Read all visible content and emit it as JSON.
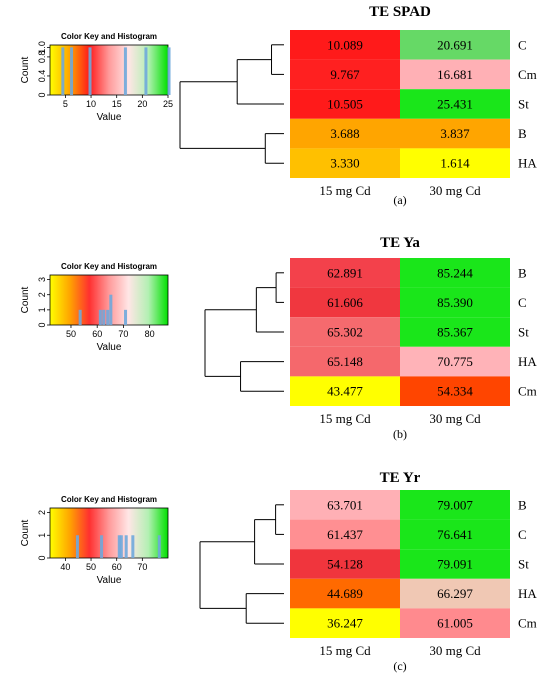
{
  "chart_data": [
    {
      "type": "heatmap",
      "title": "TE SPAD",
      "panel": "(a)",
      "columns": [
        "15 mg Cd",
        "30 mg Cd"
      ],
      "rows": [
        "C",
        "Cm",
        "St",
        "B",
        "HA"
      ],
      "values": [
        [
          "10.089",
          "20.691"
        ],
        [
          "9.767",
          "16.681"
        ],
        [
          "10.505",
          "25.431"
        ],
        [
          "3.688",
          "3.837"
        ],
        [
          "3.330",
          "1.614"
        ]
      ],
      "colors": [
        [
          "#ff1a1a",
          "#66d966"
        ],
        [
          "#ff2020",
          "#ffb0b5"
        ],
        [
          "#ff1a1a",
          "#1ae61a"
        ],
        [
          "#ffa500",
          "#ffa500"
        ],
        [
          "#ffc000",
          "#ffff00"
        ]
      ],
      "dendrogram": {
        "heights": [
          0.12,
          0.45,
          0.18,
          1.0
        ],
        "order": [
          "C",
          "Cm",
          "St",
          "B",
          "HA"
        ]
      },
      "color_key": {
        "title": "Color Key and Histogram",
        "xlabel": "Value",
        "ylabel": "Count",
        "xlim": [
          2,
          25
        ],
        "xticks": [
          "5",
          "10",
          "15",
          "20",
          "25"
        ],
        "yticks": [
          "0",
          "0.4",
          "0.8",
          "1.0"
        ],
        "gradient": [
          "#ffff00",
          "#ffa500",
          "#ff1a1a",
          "#ff9a9a",
          "#ffe6e6",
          "#b3f0b3",
          "#00e000"
        ]
      }
    },
    {
      "type": "heatmap",
      "title": "TE Ya",
      "panel": "(b)",
      "columns": [
        "15 mg Cd",
        "30 mg Cd"
      ],
      "rows": [
        "B",
        "C",
        "St",
        "HA",
        "Cm"
      ],
      "values": [
        [
          "62.891",
          "85.244"
        ],
        [
          "61.606",
          "85.390"
        ],
        [
          "65.302",
          "85.367"
        ],
        [
          "65.148",
          "70.775"
        ],
        [
          "43.477",
          "54.334"
        ]
      ],
      "colors": [
        [
          "#f3414b",
          "#1ae61a"
        ],
        [
          "#f0373f",
          "#1ae61a"
        ],
        [
          "#f56a6e",
          "#1ae61a"
        ],
        [
          "#f5686c",
          "#ffb3b8"
        ],
        [
          "#ffff00",
          "#ff4500"
        ]
      ],
      "dendrogram": {
        "heights": [
          0.1,
          0.35,
          0.55,
          1.0
        ],
        "order": [
          "B",
          "C",
          "St",
          "HA",
          "Cm"
        ]
      },
      "color_key": {
        "title": "Color Key and Histogram",
        "xlabel": "Value",
        "ylabel": "Count",
        "xlim": [
          42,
          87
        ],
        "xticks": [
          "50",
          "60",
          "70",
          "80"
        ],
        "yticks": [
          "0",
          "1",
          "2",
          "3"
        ],
        "gradient": [
          "#ffff00",
          "#ffa500",
          "#ff3030",
          "#ff9a9a",
          "#ffe6e6",
          "#b3f0b3",
          "#00e000"
        ]
      }
    },
    {
      "type": "heatmap",
      "title": "TE Yr",
      "panel": "(c)",
      "columns": [
        "15 mg Cd",
        "30 mg Cd"
      ],
      "rows": [
        "B",
        "C",
        "St",
        "HA",
        "Cm"
      ],
      "values": [
        [
          "63.701",
          "79.007"
        ],
        [
          "61.437",
          "76.641"
        ],
        [
          "54.128",
          "79.091"
        ],
        [
          "44.689",
          "66.297"
        ],
        [
          "36.247",
          "61.005"
        ]
      ],
      "colors": [
        [
          "#ffb0b5",
          "#1ae61a"
        ],
        [
          "#ff8f92",
          "#1ae61a"
        ],
        [
          "#f0353d",
          "#1ae61a"
        ],
        [
          "#ff6a00",
          "#f0c8b4"
        ],
        [
          "#ffff00",
          "#ff8a8e"
        ]
      ],
      "dendrogram": {
        "heights": [
          0.1,
          0.35,
          0.45,
          1.0
        ],
        "order": [
          "B",
          "C",
          "St",
          "HA",
          "Cm"
        ]
      },
      "color_key": {
        "title": "Color Key and Histogram",
        "xlabel": "Value",
        "ylabel": "Count",
        "xlim": [
          34,
          80
        ],
        "xticks": [
          "40",
          "50",
          "60",
          "70"
        ],
        "yticks": [
          "0",
          "1",
          "2"
        ],
        "gradient": [
          "#ffff00",
          "#ffa500",
          "#ff3030",
          "#ff9a9a",
          "#ffe6e6",
          "#b3f0b3",
          "#00e000"
        ]
      }
    }
  ]
}
